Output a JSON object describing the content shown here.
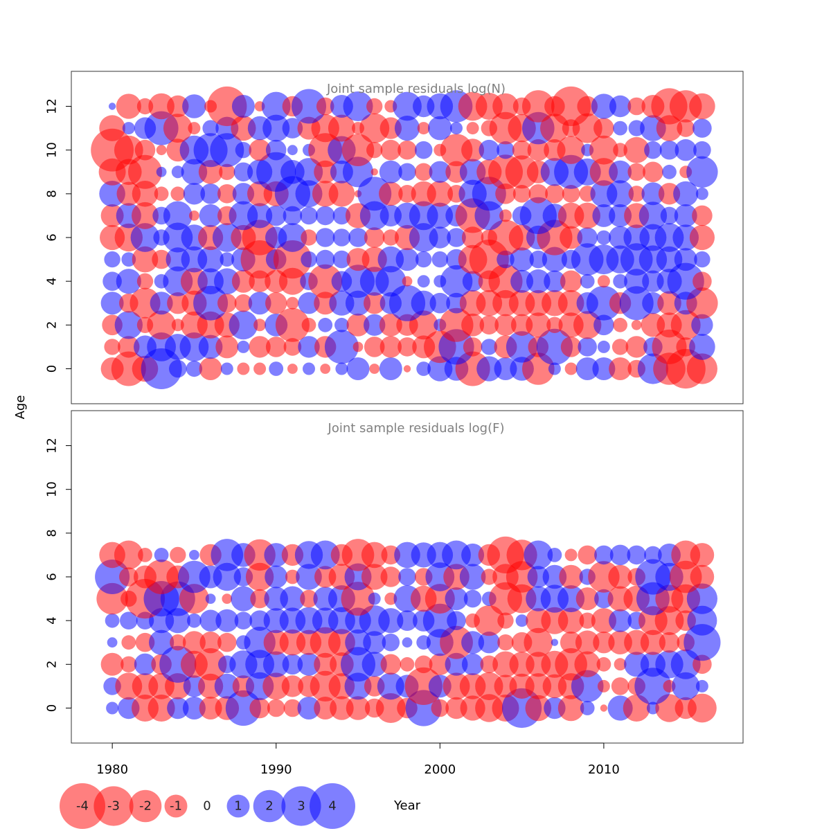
{
  "chart_data": {
    "type": "scatter",
    "xlabel": "Year",
    "ylabel": "Age",
    "x_ticks": [
      1980,
      1990,
      2000,
      2010
    ],
    "y_ticks": [
      0,
      2,
      4,
      6,
      8,
      10,
      12
    ],
    "xlim": [
      1977.5,
      2018.5
    ],
    "ylim": [
      -1.6,
      13.6
    ],
    "colors": {
      "negative": "#ff0000",
      "positive": "#0000ff",
      "opacity": 0.5
    },
    "legend": {
      "position": "bottom-left",
      "entries": [
        {
          "label": "-4",
          "value": -4
        },
        {
          "label": "-3",
          "value": -3
        },
        {
          "label": "-2",
          "value": -2
        },
        {
          "label": "-1",
          "value": -1
        },
        {
          "label": "0",
          "value": 0
        },
        {
          "label": "1",
          "value": 1
        },
        {
          "label": "2",
          "value": 2
        },
        {
          "label": "3",
          "value": 3
        },
        {
          "label": "4",
          "value": 4
        }
      ]
    },
    "panels": [
      {
        "title": "Joint sample residuals log(N)",
        "years": [
          1980,
          1981,
          1982,
          1983,
          1984,
          1985,
          1986,
          1987,
          1988,
          1989,
          1990,
          1991,
          1992,
          1993,
          1994,
          1995,
          1996,
          1997,
          1998,
          1999,
          2000,
          2001,
          2002,
          2003,
          2004,
          2005,
          2006,
          2007,
          2008,
          2009,
          2010,
          2011,
          2012,
          2013,
          2014,
          2015,
          2016
        ],
        "ages": [
          0,
          1,
          2,
          3,
          4,
          5,
          6,
          7,
          8,
          9,
          10,
          11,
          12
        ],
        "residuals": [
          [
            -1.0,
            -2.3,
            -1.3,
            3.2,
            0.6,
            0.5,
            -1.0,
            0.3,
            -0.3,
            -0.3,
            0.4,
            -0.2,
            0.3,
            -0.2,
            0.3,
            1.0,
            -0.2,
            1.0,
            -0.1,
            0.4,
            1.2,
            1.1,
            -2.3,
            1.2,
            1.0,
            1.1,
            -2.0,
            0.3,
            -0.3,
            1.0,
            1.0,
            -1.0,
            -0.6,
            1.8,
            -2.0,
            -3.0,
            -1.8
          ],
          [
            -0.5,
            -0.9,
            1.0,
            1.6,
            1.3,
            1.6,
            1.1,
            -1.0,
            0.3,
            -0.9,
            -0.8,
            -0.6,
            0.9,
            -0.9,
            2.2,
            -0.2,
            -0.8,
            -0.9,
            -0.7,
            -1.0,
            -2.0,
            2.4,
            -0.7,
            0.5,
            -1.0,
            1.9,
            -0.8,
            2.5,
            -0.8,
            0.7,
            0.3,
            -0.5,
            -0.9,
            0.7,
            -2.3,
            -0.7,
            1.3
          ],
          [
            -0.8,
            1.5,
            -0.5,
            -1.6,
            -0.3,
            -1.4,
            -1.4,
            -1.2,
            1.6,
            -0.3,
            1.0,
            -2.2,
            -0.4,
            0.4,
            0.4,
            -1.0,
            0.9,
            -1.0,
            -0.9,
            -1.6,
            0.3,
            -2.2,
            -1.0,
            -0.7,
            -0.9,
            -0.9,
            -1.2,
            -0.5,
            -1.2,
            -1.5,
            0.8,
            -0.4,
            -0.2,
            -1.1,
            -1.2,
            -1.7,
            0.9
          ],
          [
            1.0,
            -0.7,
            -1.8,
            1.0,
            -0.9,
            -1.2,
            2.3,
            -0.7,
            -0.6,
            1.0,
            -0.9,
            -0.3,
            0.9,
            -1.0,
            1.2,
            1.2,
            -0.9,
            0.9,
            2.5,
            1.2,
            0.8,
            0.8,
            -1.3,
            -1.3,
            -1.3,
            -1.3,
            -1.3,
            -1.3,
            -1.3,
            0.9,
            2.3,
            -0.9,
            2.2,
            0.9,
            -1.1,
            1.0,
            -1.9
          ],
          [
            0.7,
            1.2,
            -0.5,
            0.4,
            1.7,
            -1.4,
            1.3,
            1.3,
            -1.0,
            -0.9,
            -1.0,
            -1.4,
            0.6,
            -2.2,
            0.8,
            2.1,
            1.6,
            1.8,
            -0.2,
            0.3,
            0.3,
            2.0,
            0.8,
            -0.9,
            -2.2,
            1.0,
            1.1,
            0.9,
            -0.9,
            0.4,
            -0.3,
            0.4,
            1.2,
            0.9,
            1.2,
            2.6,
            -0.7
          ],
          [
            0.5,
            0.4,
            -1.3,
            -0.7,
            1.1,
            1.3,
            1.3,
            0.4,
            1.1,
            -2.8,
            0.8,
            -2.8,
            0.5,
            0.7,
            0.6,
            -1.0,
            -1.2,
            1.3,
            1.0,
            0.5,
            0.5,
            0.8,
            -1.6,
            -3.0,
            0.6,
            1.1,
            0.6,
            1.2,
            0.7,
            2.0,
            1.7,
            1.5,
            2.0,
            1.5,
            1.3,
            1.0,
            0.5
          ],
          [
            -1.2,
            -1.5,
            1.6,
            0.5,
            1.7,
            1.3,
            -1.2,
            1.6,
            -1.2,
            -2.4,
            0.9,
            1.6,
            -0.5,
            0.7,
            0.6,
            0.7,
            -0.8,
            -0.5,
            -1.2,
            1.6,
            0.9,
            0.7,
            -0.9,
            -0.5,
            -2.4,
            -1.3,
            1.1,
            -2.4,
            -1.0,
            0.8,
            0.4,
            1.0,
            1.3,
            1.4,
            1.6,
            1.3,
            -1.2
          ],
          [
            -1.0,
            1.2,
            -1.4,
            0.6,
            1.6,
            -0.2,
            1.0,
            -0.7,
            1.6,
            1.2,
            0.8,
            0.7,
            0.6,
            0.7,
            0.6,
            -1.2,
            1.6,
            0.9,
            1.3,
            1.6,
            1.3,
            0.9,
            -2.3,
            1.6,
            -0.3,
            0.7,
            2.6,
            1.1,
            -1.3,
            -1.3,
            1.0,
            1.0,
            -1.2,
            1.5,
            0.6,
            1.0,
            -0.8
          ],
          [
            1.3,
            -1.1,
            -1.3,
            -0.4,
            -0.4,
            0.9,
            0.8,
            -0.7,
            0.9,
            -1.2,
            -1.2,
            2.4,
            1.4,
            -1.3,
            -1.3,
            -0.1,
            2.2,
            -1.1,
            -0.6,
            -1.2,
            -1.3,
            -0.6,
            1.5,
            2.2,
            -0.8,
            -0.6,
            -0.7,
            -0.7,
            -0.6,
            -0.5,
            1.4,
            1.4,
            -0.5,
            1.0,
            -0.9,
            1.2,
            0.3
          ],
          [
            -1.4,
            -1.3,
            -2.2,
            0.2,
            0.3,
            1.3,
            -1.1,
            -0.5,
            0.7,
            1.2,
            3.0,
            1.1,
            1.5,
            -1.0,
            1.0,
            1.8,
            -0.1,
            1.0,
            0.6,
            -0.6,
            0.9,
            -0.9,
            1.3,
            -1.2,
            -2.3,
            -2.1,
            -1.0,
            1.5,
            2.2,
            1.4,
            -1.5,
            1.0,
            -0.6,
            -0.8,
            0.4,
            -0.3,
            1.9
          ],
          [
            -3.5,
            -1.6,
            -0.8,
            -0.2,
            -1.0,
            1.6,
            2.2,
            2.2,
            0.5,
            -0.9,
            0.8,
            0.2,
            0.3,
            -2.2,
            1.5,
            -2.0,
            -0.5,
            -0.8,
            -0.7,
            0.6,
            -0.3,
            -2.0,
            -1.0,
            0.8,
            0.6,
            -0.7,
            -0.9,
            -0.9,
            -1.5,
            0.3,
            -1.6,
            -0.4,
            -1.3,
            0.6,
            0.7,
            0.9,
            0.6
          ],
          [
            -1.3,
            0.3,
            0.9,
            2.2,
            -1.6,
            -0.3,
            0.5,
            1.0,
            -1.2,
            1.1,
            1.4,
            0.8,
            -1.0,
            -1.5,
            -1.4,
            -0.3,
            -1.7,
            -0.9,
            1.2,
            -0.3,
            1.1,
            0.3,
            -0.3,
            -0.5,
            -2.0,
            -1.5,
            2.0,
            -1.6,
            -0.6,
            -1.7,
            -0.8,
            0.4,
            0.5,
            1.3,
            -1.3,
            -0.6,
            0.7
          ],
          [
            0.1,
            -1.2,
            -0.5,
            -1.3,
            -0.9,
            1.1,
            -0.3,
            -3.0,
            1.0,
            -0.2,
            1.6,
            -0.8,
            2.3,
            -0.6,
            1.0,
            1.7,
            -0.5,
            -0.3,
            1.6,
            0.9,
            1.3,
            2.0,
            -1.6,
            -1.4,
            -1.3,
            -0.6,
            -2.0,
            -0.8,
            -3.0,
            -0.8,
            1.2,
            0.9,
            -0.6,
            -1.0,
            -2.5,
            -2.0,
            -1.3
          ]
        ]
      },
      {
        "title": "Joint sample residuals log(F)",
        "years": [
          1980,
          1981,
          1982,
          1983,
          1984,
          1985,
          1986,
          1987,
          1988,
          1989,
          1990,
          1991,
          1992,
          1993,
          1994,
          1995,
          1996,
          1997,
          1998,
          1999,
          2000,
          2001,
          2002,
          2003,
          2004,
          2005,
          2006,
          2007,
          2008,
          2009,
          2010,
          2011,
          2012,
          2013,
          2014,
          2015,
          2016
        ],
        "ages": [
          0,
          1,
          2,
          3,
          4,
          5,
          6,
          7
        ],
        "residuals": [
          [
            0.3,
            0.9,
            -1.4,
            -1.4,
            0.9,
            1.0,
            -1.0,
            -1.1,
            2.4,
            -0.8,
            -0.6,
            -0.6,
            1.0,
            -1.0,
            -1.1,
            -1.1,
            -0.7,
            -1.7,
            -0.8,
            2.5,
            -0.6,
            -0.9,
            -1.2,
            -1.5,
            -1.4,
            3.0,
            -1.3,
            0.9,
            -1.3,
            0.4,
            -0.1,
            1.2,
            -1.4,
            0.3,
            -1.5,
            -0.9,
            -1.6
          ],
          [
            0.6,
            -1.4,
            -1.3,
            -1.3,
            -1.3,
            0.9,
            -1.2,
            1.2,
            -0.9,
            1.5,
            -1.4,
            -0.9,
            -0.9,
            -1.8,
            -1.3,
            1.4,
            -0.8,
            1.4,
            1.0,
            -2.7,
            1.0,
            -1.4,
            -1.3,
            -1.5,
            -1.0,
            -1.2,
            -1.3,
            -1.1,
            -1.3,
            2.0,
            -0.3,
            -0.6,
            -0.6,
            2.6,
            -0.3,
            1.5,
            0.3
          ],
          [
            -1.0,
            -0.5,
            0.9,
            -0.8,
            2.6,
            -1.4,
            -2.0,
            0.6,
            1.5,
            1.6,
            1.3,
            0.8,
            1.0,
            -1.0,
            -1.1,
            2.3,
            1.2,
            -0.8,
            -0.4,
            -0.6,
            -0.9,
            1.0,
            0.9,
            -0.6,
            -1.3,
            -1.2,
            -1.2,
            -1.4,
            -2.0,
            -1.3,
            -0.4,
            -0.3,
            1.2,
            1.2,
            1.5,
            1.7,
            -0.7
          ],
          [
            0.2,
            -0.4,
            -0.7,
            1.2,
            -0.5,
            -1.0,
            -0.9,
            -0.7,
            0.4,
            1.9,
            -1.2,
            -1.3,
            -1.2,
            -1.8,
            -1.4,
            1.3,
            1.0,
            0.6,
            0.2,
            0.4,
            1.4,
            -2.1,
            1.0,
            0.9,
            -0.5,
            -0.8,
            -1.6,
            0.1,
            -0.9,
            -1.1,
            -0.9,
            -1.1,
            -1.2,
            -1.2,
            -0.8,
            -0.6,
            2.6
          ],
          [
            0.4,
            0.6,
            0.6,
            1.2,
            1.2,
            0.4,
            0.9,
            1.0,
            0.6,
            0.8,
            1.2,
            1.3,
            1.4,
            1.3,
            1.4,
            1.3,
            1.8,
            1.2,
            0.8,
            0.9,
            2.2,
            0.7,
            -0.4,
            -1.8,
            -0.5,
            0.3,
            -1.2,
            -1.4,
            -1.3,
            -0.5,
            -1.2,
            1.0,
            0.6,
            -1.6,
            -1.6,
            -0.8,
            1.7
          ],
          [
            -1.9,
            -0.5,
            -3.0,
            2.4,
            2.3,
            -1.7,
            0.2,
            -0.2,
            1.2,
            -0.7,
            1.1,
            1.2,
            -0.6,
            1.1,
            1.4,
            -2.2,
            0.3,
            -0.3,
            1.4,
            -1.3,
            -1.7,
            1.0,
            0.6,
            0.4,
            -2.1,
            -1.6,
            1.2,
            1.5,
            1.4,
            -1.0,
            0.7,
            -1.2,
            -1.3,
            2.1,
            -1.5,
            -1.6,
            1.8
          ],
          [
            2.3,
            -0.7,
            -1.0,
            -2.3,
            -1.0,
            2.0,
            1.0,
            1.5,
            0.7,
            -1.5,
            1.0,
            -0.4,
            1.3,
            -0.9,
            -1.3,
            1.4,
            -1.3,
            -0.8,
            0.6,
            -0.6,
            1.6,
            -1.3,
            1.3,
            -0.5,
            -1.3,
            -1.9,
            0.9,
            1.1,
            -1.1,
            0.5,
            -1.9,
            -1.1,
            -0.6,
            2.4,
            1.5,
            -2.0,
            -1.1
          ],
          [
            -1.3,
            -1.6,
            -0.4,
            0.4,
            -0.5,
            0.2,
            -0.9,
            2.0,
            1.1,
            -1.9,
            1.1,
            -0.9,
            1.5,
            1.6,
            -0.9,
            -2.0,
            -1.3,
            -0.7,
            1.3,
            1.2,
            1.3,
            1.6,
            1.0,
            -0.9,
            -2.6,
            -1.8,
            1.6,
            0.4,
            -0.3,
            -0.7,
            0.7,
            0.8,
            0.7,
            0.6,
            1.0,
            -1.6,
            -1.1
          ]
        ]
      }
    ]
  }
}
